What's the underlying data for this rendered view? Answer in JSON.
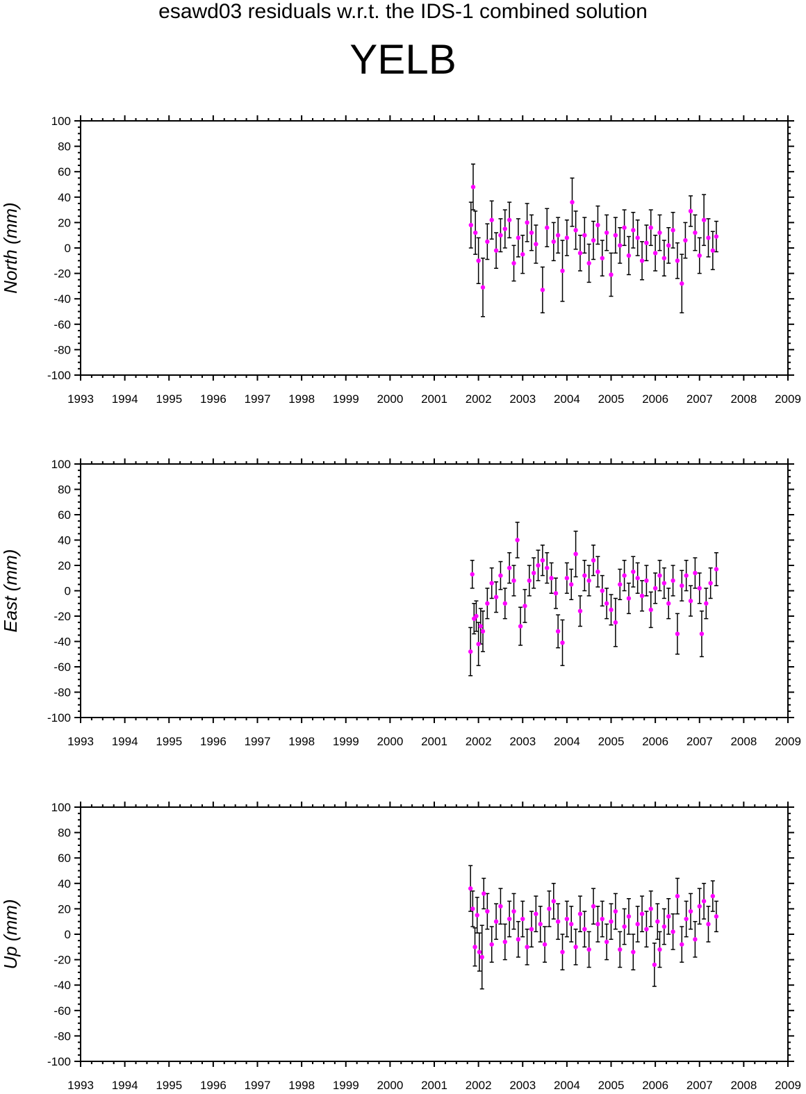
{
  "header": {
    "suptitle": "esawd03 residuals w.r.t. the IDS-1 combined solution",
    "station": "YELB"
  },
  "colors": {
    "points": "#ff00ff",
    "errorbars": "#000000",
    "axes": "#000000"
  },
  "chart_data": [
    {
      "type": "scatter",
      "title": "",
      "ylabel": "North (mm)",
      "xlim": [
        1993,
        2009
      ],
      "ylim": [
        -100,
        100
      ],
      "xticks": [
        "1993",
        "1994",
        "1995",
        "1996",
        "1997",
        "1998",
        "1999",
        "2000",
        "2001",
        "2002",
        "2003",
        "2004",
        "2005",
        "2006",
        "2007",
        "2008",
        "2009"
      ],
      "yticks": [
        "100",
        "80",
        "60",
        "40",
        "20",
        "0",
        "-20",
        "-40",
        "-60",
        "-80",
        "-100"
      ],
      "series": [
        {
          "x": [
            2001.83,
            2001.88,
            2001.93,
            2002.0,
            2002.1,
            2002.2,
            2002.3,
            2002.4,
            2002.5,
            2002.6,
            2002.7,
            2002.8,
            2002.9,
            2003.0,
            2003.1,
            2003.2,
            2003.3,
            2003.45,
            2003.55,
            2003.7,
            2003.8,
            2003.9,
            2004.0,
            2004.12,
            2004.2,
            2004.3,
            2004.4,
            2004.5,
            2004.6,
            2004.7,
            2004.8,
            2004.9,
            2005.0,
            2005.1,
            2005.2,
            2005.3,
            2005.4,
            2005.5,
            2005.6,
            2005.7,
            2005.8,
            2005.9,
            2006.0,
            2006.1,
            2006.2,
            2006.3,
            2006.4,
            2006.5,
            2006.6,
            2006.68,
            2006.8,
            2006.9,
            2007.0,
            2007.1,
            2007.2,
            2007.3,
            2007.38
          ],
          "y": [
            18,
            48,
            12,
            -10,
            -31,
            5,
            22,
            -2,
            10,
            15,
            22,
            -12,
            8,
            -5,
            20,
            12,
            3,
            -33,
            16,
            5,
            10,
            -18,
            8,
            36,
            14,
            -4,
            10,
            -12,
            6,
            18,
            -8,
            12,
            -21,
            10,
            2,
            16,
            -6,
            14,
            8,
            -10,
            4,
            16,
            -4,
            12,
            -8,
            2,
            14,
            -10,
            -28,
            6,
            29,
            12,
            -6,
            22,
            8,
            -2,
            9
          ],
          "err": [
            18,
            18,
            17,
            18,
            23,
            14,
            15,
            14,
            13,
            15,
            14,
            14,
            15,
            15,
            15,
            14,
            15,
            18,
            15,
            15,
            14,
            24,
            14,
            19,
            15,
            14,
            14,
            15,
            15,
            15,
            14,
            14,
            17,
            14,
            14,
            14,
            15,
            14,
            14,
            15,
            14,
            14,
            14,
            14,
            14,
            14,
            14,
            14,
            23,
            14,
            12,
            14,
            14,
            20,
            15,
            15,
            12
          ]
        }
      ]
    },
    {
      "type": "scatter",
      "title": "",
      "ylabel": "East (mm)",
      "xlim": [
        1993,
        2009
      ],
      "ylim": [
        -100,
        100
      ],
      "xticks": [
        "1993",
        "1994",
        "1995",
        "1996",
        "1997",
        "1998",
        "1999",
        "2000",
        "2001",
        "2002",
        "2003",
        "2004",
        "2005",
        "2006",
        "2007",
        "2008",
        "2009"
      ],
      "yticks": [
        "100",
        "80",
        "60",
        "40",
        "20",
        "0",
        "-20",
        "-40",
        "-60",
        "-80",
        "-100"
      ],
      "series": [
        {
          "x": [
            2001.82,
            2001.86,
            2001.9,
            2001.95,
            2002.0,
            2002.05,
            2002.1,
            2002.2,
            2002.3,
            2002.4,
            2002.5,
            2002.6,
            2002.7,
            2002.8,
            2002.88,
            2002.95,
            2003.05,
            2003.15,
            2003.25,
            2003.35,
            2003.45,
            2003.55,
            2003.65,
            2003.75,
            2003.8,
            2003.9,
            2004.0,
            2004.1,
            2004.2,
            2004.3,
            2004.4,
            2004.5,
            2004.6,
            2004.7,
            2004.8,
            2004.9,
            2005.0,
            2005.1,
            2005.2,
            2005.3,
            2005.4,
            2005.5,
            2005.6,
            2005.7,
            2005.8,
            2005.9,
            2006.0,
            2006.1,
            2006.2,
            2006.3,
            2006.4,
            2006.5,
            2006.6,
            2006.7,
            2006.8,
            2006.9,
            2007.0,
            2007.05,
            2007.15,
            2007.25,
            2007.38
          ],
          "y": [
            -48,
            13,
            -22,
            -20,
            -42,
            -28,
            -32,
            -10,
            6,
            -5,
            12,
            -10,
            18,
            8,
            40,
            -28,
            -12,
            8,
            14,
            20,
            24,
            18,
            10,
            -2,
            -32,
            -41,
            10,
            5,
            29,
            -16,
            12,
            8,
            24,
            15,
            0,
            -10,
            -15,
            -25,
            5,
            12,
            -6,
            15,
            10,
            -4,
            8,
            -15,
            2,
            12,
            6,
            -10,
            8,
            -34,
            4,
            12,
            -8,
            14,
            2,
            -34,
            -10,
            6,
            17
          ],
          "err": [
            19,
            11,
            12,
            12,
            17,
            14,
            16,
            12,
            12,
            12,
            11,
            12,
            12,
            12,
            14,
            15,
            13,
            12,
            12,
            12,
            12,
            12,
            12,
            12,
            13,
            18,
            12,
            12,
            18,
            12,
            12,
            12,
            12,
            12,
            12,
            12,
            12,
            19,
            12,
            12,
            12,
            12,
            12,
            12,
            12,
            14,
            12,
            12,
            12,
            12,
            12,
            16,
            12,
            12,
            12,
            12,
            12,
            18,
            12,
            12,
            13
          ]
        }
      ]
    },
    {
      "type": "scatter",
      "title": "",
      "ylabel": "Up (mm)",
      "xlim": [
        1993,
        2009
      ],
      "ylim": [
        -100,
        100
      ],
      "xticks": [
        "1993",
        "1994",
        "1995",
        "1996",
        "1997",
        "1998",
        "1999",
        "2000",
        "2001",
        "2002",
        "2003",
        "2004",
        "2005",
        "2006",
        "2007",
        "2008",
        "2009"
      ],
      "yticks": [
        "100",
        "80",
        "60",
        "40",
        "20",
        "0",
        "-20",
        "-40",
        "-60",
        "-80",
        "-100"
      ],
      "series": [
        {
          "x": [
            2001.82,
            2001.87,
            2001.92,
            2001.97,
            2002.02,
            2002.08,
            2002.12,
            2002.2,
            2002.3,
            2002.4,
            2002.5,
            2002.6,
            2002.7,
            2002.8,
            2002.9,
            2003.0,
            2003.1,
            2003.2,
            2003.3,
            2003.4,
            2003.5,
            2003.6,
            2003.7,
            2003.8,
            2003.9,
            2004.0,
            2004.1,
            2004.2,
            2004.3,
            2004.4,
            2004.5,
            2004.6,
            2004.7,
            2004.8,
            2004.9,
            2005.0,
            2005.1,
            2005.2,
            2005.3,
            2005.4,
            2005.5,
            2005.6,
            2005.7,
            2005.8,
            2005.9,
            2005.98,
            2006.05,
            2006.1,
            2006.2,
            2006.3,
            2006.4,
            2006.5,
            2006.6,
            2006.7,
            2006.8,
            2006.9,
            2007.0,
            2007.1,
            2007.2,
            2007.3,
            2007.38
          ],
          "y": [
            36,
            20,
            -10,
            15,
            -14,
            -18,
            32,
            18,
            -8,
            10,
            22,
            -6,
            12,
            18,
            -4,
            12,
            -10,
            4,
            16,
            8,
            -8,
            20,
            26,
            10,
            -14,
            12,
            8,
            -10,
            16,
            4,
            -12,
            22,
            8,
            12,
            -6,
            10,
            18,
            -12,
            6,
            14,
            -14,
            8,
            16,
            4,
            20,
            -24,
            10,
            -12,
            6,
            14,
            2,
            30,
            -8,
            12,
            18,
            -4,
            22,
            26,
            8,
            30,
            14
          ],
          "err": [
            18,
            14,
            15,
            14,
            15,
            25,
            12,
            14,
            14,
            14,
            14,
            14,
            14,
            14,
            14,
            14,
            14,
            14,
            14,
            14,
            14,
            14,
            14,
            14,
            14,
            14,
            14,
            14,
            14,
            14,
            14,
            14,
            14,
            14,
            14,
            14,
            14,
            14,
            14,
            14,
            14,
            14,
            14,
            14,
            14,
            17,
            14,
            14,
            14,
            14,
            14,
            14,
            14,
            14,
            14,
            14,
            14,
            14,
            14,
            12,
            12
          ]
        }
      ]
    }
  ]
}
